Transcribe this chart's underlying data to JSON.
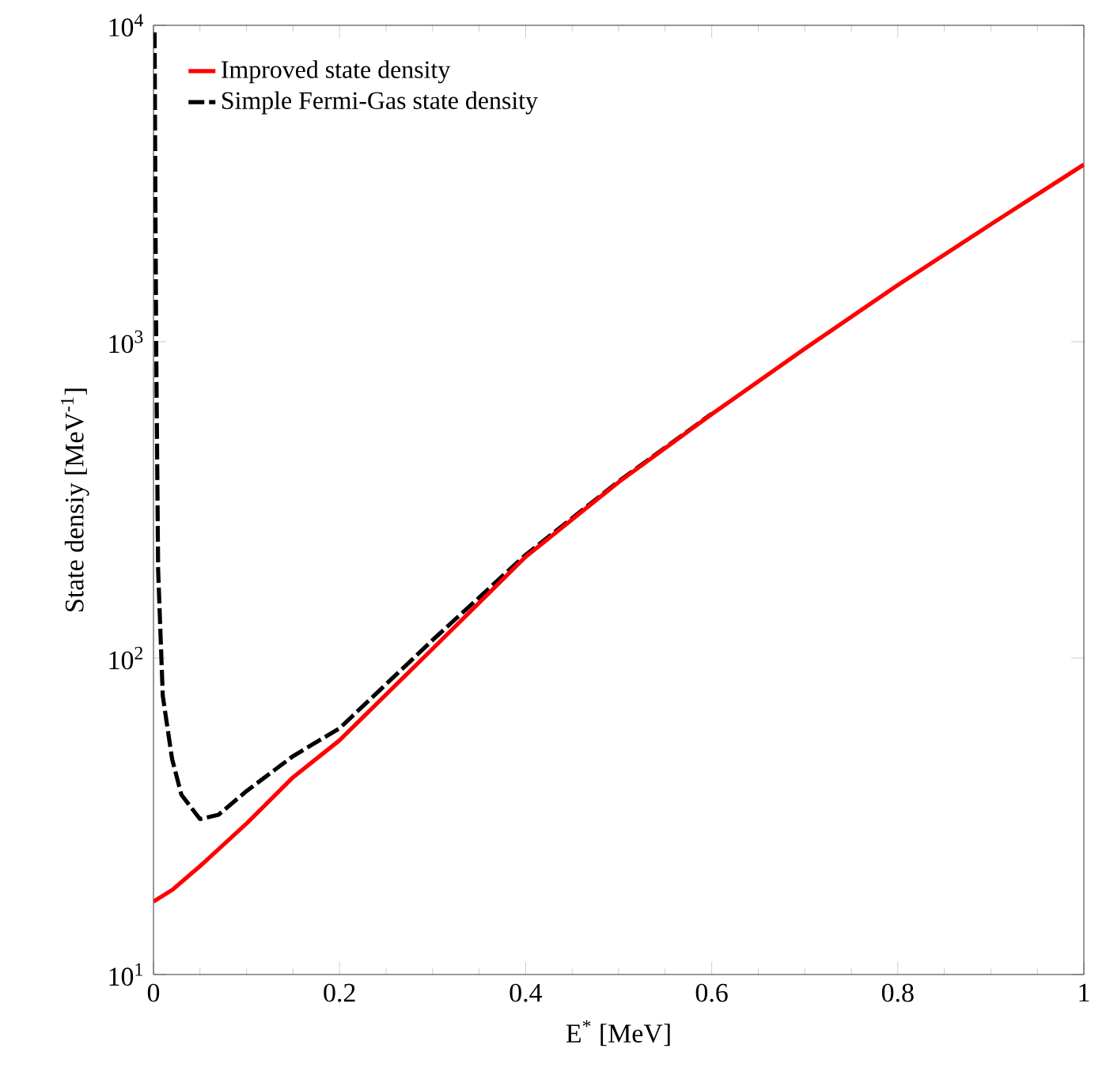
{
  "chart_data": {
    "type": "line",
    "xlabel": "E$^{*}$ [MeV]",
    "ylabel": "State densiy [MeV$^{-1}$]",
    "log": "y",
    "legend": "top left",
    "grid": false,
    "xlim": [
      0,
      1
    ],
    "ylim": [
      10,
      10000
    ],
    "xticks": [
      0,
      0.2,
      0.4,
      0.6,
      0.8,
      {
        "value": 1,
        "label": "1"
      }
    ],
    "yticks": [
      {
        "value": 10,
        "label": "10$^{1}$"
      },
      {
        "value": 100,
        "label": "10$^{2}$"
      },
      {
        "value": 1000,
        "label": "10$^{3}$"
      },
      {
        "value": 10000,
        "label": "10$^{4}$"
      }
    ],
    "series": [
      {
        "name": "Improved state density",
        "color": "#ff0000",
        "line_style": "solid",
        "x": [
          0,
          0.02,
          0.05,
          0.1,
          0.15,
          0.2,
          0.3,
          0.4,
          0.5,
          0.6,
          0.7,
          0.8,
          0.9,
          1.0
        ],
        "values": [
          17,
          18.5,
          22,
          30,
          42,
          55,
          107,
          209,
          360,
          590,
          950,
          1510,
          2350,
          3630
        ]
      },
      {
        "name": "Simple Fermi-Gas state density",
        "color": "#000000",
        "line_style": "dashed",
        "x": [
          0.0012,
          0.002,
          0.003,
          0.005,
          0.01,
          0.02,
          0.03,
          0.05,
          0.07,
          0.1,
          0.15,
          0.2,
          0.3,
          0.4,
          0.5,
          0.6
        ],
        "values": [
          9500,
          3000,
          900,
          190,
          76,
          48,
          37,
          31,
          32,
          38,
          49,
          60,
          114,
          212,
          362,
          592
        ]
      }
    ]
  }
}
